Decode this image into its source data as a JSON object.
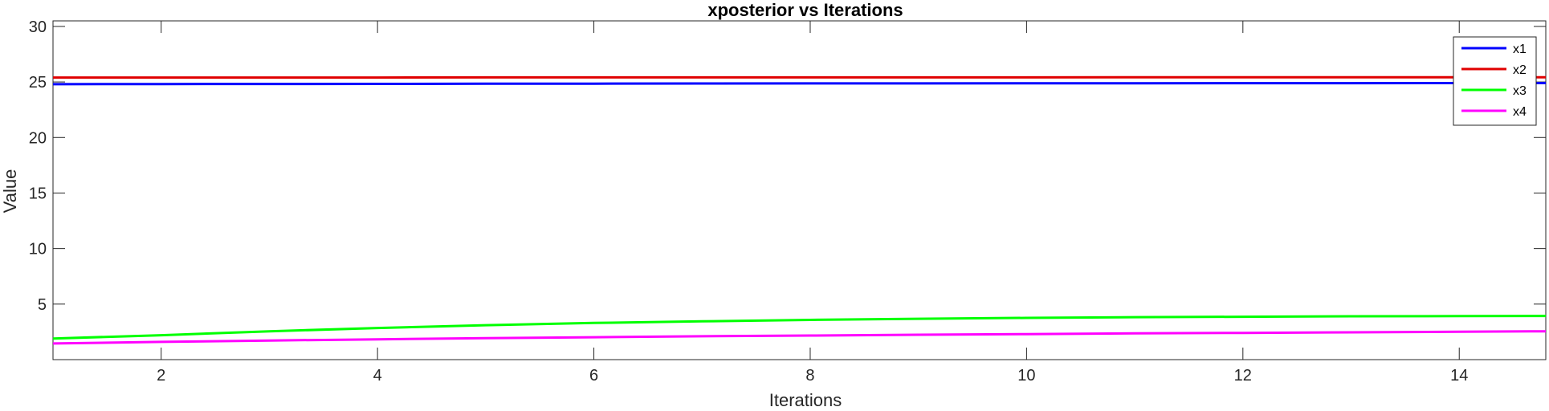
{
  "chart_data": {
    "type": "line",
    "title": "xposterior vs Iterations",
    "xlabel": "Iterations",
    "ylabel": "Value",
    "xlim": [
      1,
      14.8
    ],
    "ylim": [
      0,
      30.5
    ],
    "xticks": [
      2,
      4,
      6,
      8,
      10,
      12,
      14
    ],
    "yticks": [
      5,
      10,
      15,
      20,
      25,
      30
    ],
    "grid": false,
    "legend_position": "top-right",
    "x": [
      1,
      2,
      3,
      4,
      5,
      6,
      7,
      8,
      9,
      10,
      11,
      12,
      13,
      14,
      14.8
    ],
    "series": [
      {
        "name": "x1",
        "color": "#0000ff",
        "values": [
          24.8,
          24.81,
          24.82,
          24.83,
          24.84,
          24.85,
          24.86,
          24.87,
          24.87,
          24.88,
          24.88,
          24.89,
          24.89,
          24.9,
          24.9
        ]
      },
      {
        "name": "x2",
        "color": "#e00000",
        "values": [
          25.4,
          25.4,
          25.4,
          25.4,
          25.41,
          25.41,
          25.41,
          25.41,
          25.41,
          25.41,
          25.42,
          25.42,
          25.42,
          25.42,
          25.42
        ]
      },
      {
        "name": "x3",
        "color": "#00ff00",
        "values": [
          1.9,
          2.2,
          2.55,
          2.85,
          3.1,
          3.3,
          3.45,
          3.58,
          3.68,
          3.76,
          3.82,
          3.86,
          3.9,
          3.92,
          3.93
        ]
      },
      {
        "name": "x4",
        "color": "#ff00ff",
        "values": [
          1.45,
          1.6,
          1.72,
          1.83,
          1.93,
          2.02,
          2.1,
          2.17,
          2.24,
          2.3,
          2.36,
          2.41,
          2.46,
          2.51,
          2.55
        ]
      }
    ]
  }
}
